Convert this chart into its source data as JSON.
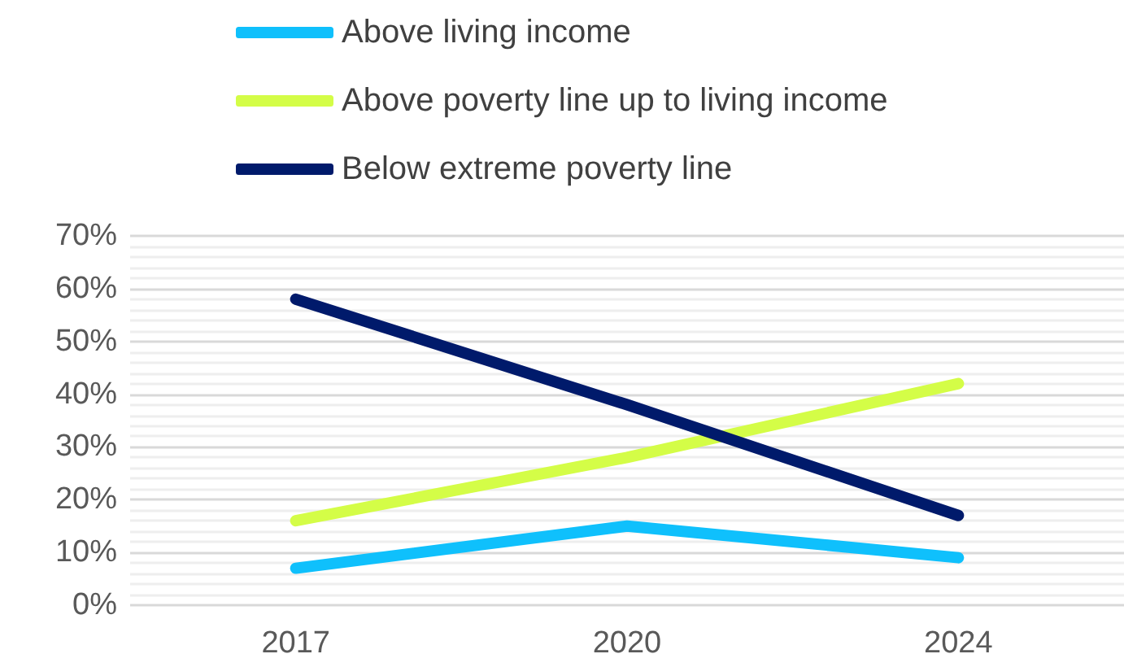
{
  "chart_data": {
    "type": "line",
    "categories": [
      "2017",
      "2020",
      "2024"
    ],
    "series": [
      {
        "name": "Above living income",
        "color": "#0fc0fc",
        "values": [
          7,
          15,
          9
        ]
      },
      {
        "name": "Above poverty line up to living income",
        "color": "#d4fd47",
        "values": [
          16,
          28,
          42
        ]
      },
      {
        "name": "Below extreme poverty line",
        "color": "#001a6b",
        "values": [
          58,
          38,
          17
        ]
      }
    ],
    "ylim": [
      0,
      70
    ],
    "yticks": [
      {
        "value": 0,
        "label": "0%"
      },
      {
        "value": 10,
        "label": "10%"
      },
      {
        "value": 20,
        "label": "20%"
      },
      {
        "value": 30,
        "label": "30%"
      },
      {
        "value": 40,
        "label": "40%"
      },
      {
        "value": 50,
        "label": "50%"
      },
      {
        "value": 60,
        "label": "60%"
      },
      {
        "value": 70,
        "label": "70%"
      }
    ],
    "grid": true,
    "legend": "top",
    "marker": "none",
    "line_style": "solid"
  }
}
